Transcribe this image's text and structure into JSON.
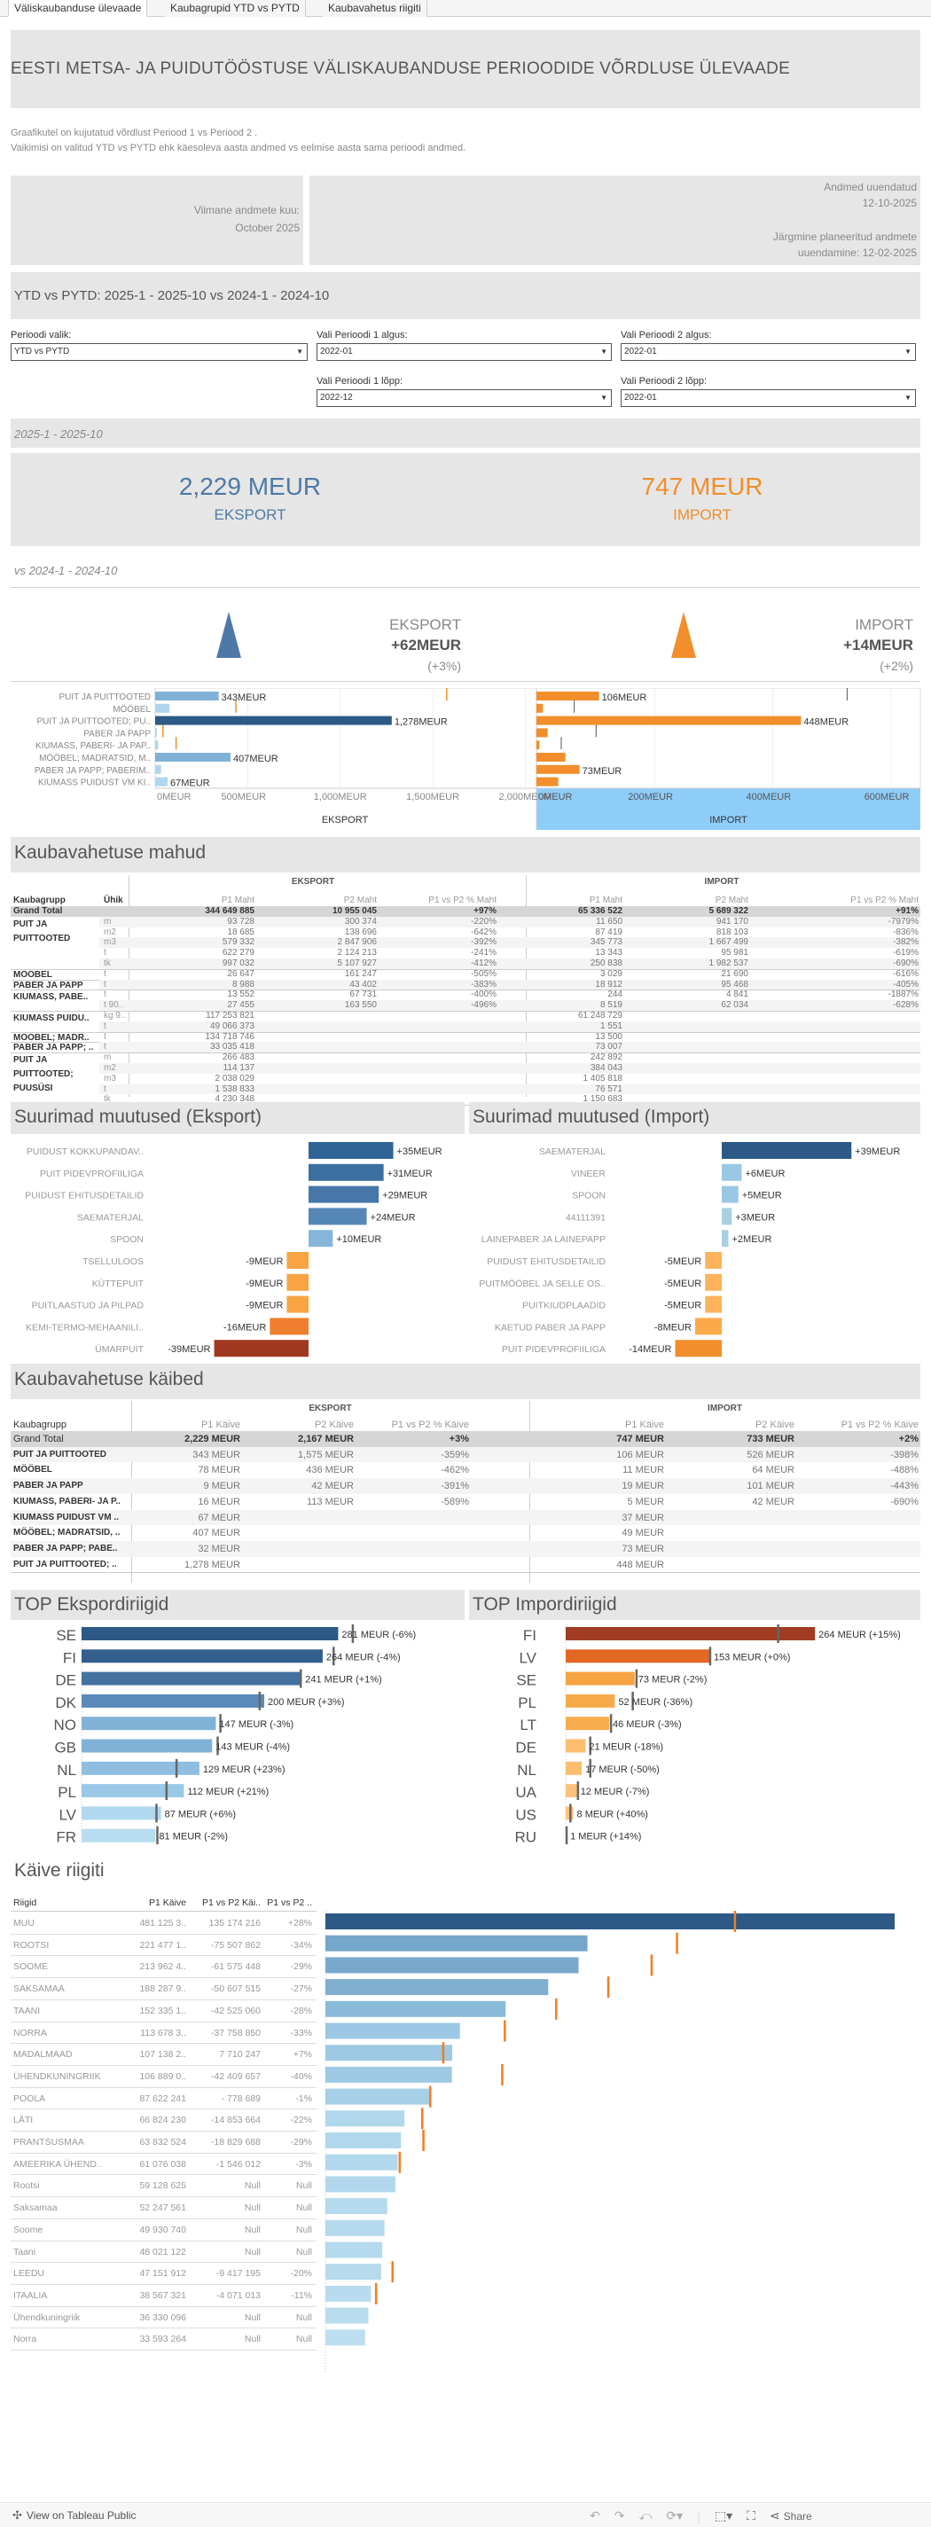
{
  "tabs": [
    {
      "label": "Väliskaubanduse ülevaade",
      "active": true
    },
    {
      "label": "Kaubagrupid YTD vs PYTD",
      "active": false
    },
    {
      "label": "Kaubavahetus riigiti",
      "active": false
    }
  ],
  "header": {
    "title": "EESTI METSA- JA PUIDUTÖÖSTUSE VÄLISKAUBANDUSE  PERIOODIDE VÕRDLUSE ÜLEVAADE",
    "description_line1": "Graafikutel on kujutatud võrdlust Periood 1 vs Periood 2 .",
    "description_line2": "Vaikimisi  on valitud YTD vs PYTD ehk käesoleva aasta andmed vs eelmise aasta sama perioodi andmed."
  },
  "info": {
    "last_month_label": "Viimane andmete kuu:",
    "last_month_value": "October 2025",
    "updated_label": "Andmed uuendatud",
    "updated_value": "12-10-2025",
    "next_update_label": "Järgmine planeeritud andmete",
    "next_update_value": "uuendamine:  12-02-2025"
  },
  "period_banner": "YTD vs PYTD:  2025-1 - 2025-10  vs  2024-1 - 2024-10",
  "filters": {
    "period_choice": {
      "label": "Perioodi valik:",
      "value": "YTD vs PYTD"
    },
    "p1_start": {
      "label": "Vali Perioodi 1 algus:",
      "value": "2022-01"
    },
    "p2_start": {
      "label": "Vali Perioodi 2 algus:",
      "value": "2022-01"
    },
    "p1_end": {
      "label": "Vali Perioodi 1 lõpp:",
      "value": "2022-12"
    },
    "p2_end": {
      "label": "Vali Perioodi 2 lõpp:",
      "value": "2022-01"
    }
  },
  "kpi": {
    "period1_label": "2025-1 - 2025-10",
    "export_value": "2,229 MEUR",
    "export_label": "EKSPORT",
    "import_value": "747 MEUR",
    "import_label": "IMPORT",
    "period2_label": "vs 2024-1 - 2024-10",
    "export_change_label": "EKSPORT",
    "export_change": "+62MEUR",
    "export_change_pct": "(+3%)",
    "import_change_label": "IMPORT",
    "import_change": "+14MEUR",
    "import_change_pct": "(+2%)"
  },
  "colors": {
    "export_blue": "#4e79a7",
    "export_dark": "#2c5985",
    "import_orange": "#f28e2b",
    "import_dark": "#9e3d22",
    "axis_highlight": "#8fcdf9"
  },
  "chart_data": [
    {
      "type": "bar",
      "title": "EKSPORT",
      "xlabel": "EKSPORT",
      "categories": [
        "PUIT JA PUITTOOTED",
        "MÖÖBEL",
        "PUIT JA PUITTOOTED; PU..",
        "PABER JA PAPP",
        "KIUMASS, PABERI- JA PAP..",
        "MÖÖBEL; MADRATSID, M..",
        "PABER JA PAPP; PABERIM..",
        "KIUMASS PUIDUST VM KI.."
      ],
      "values": [
        343,
        78,
        1278,
        9,
        16,
        407,
        32,
        67
      ],
      "reference_values": [
        1575,
        436,
        null,
        42,
        113,
        null,
        null,
        null
      ],
      "data_labels": [
        "343MEUR",
        "",
        "1,278MEUR",
        "",
        "",
        "407MEUR",
        "",
        "67MEUR"
      ],
      "xticks": [
        "0MEUR",
        "500MEUR",
        "1,000MEUR",
        "1,500MEUR",
        "2,000MEUR"
      ],
      "xlim": [
        0,
        2050
      ]
    },
    {
      "type": "bar",
      "title": "IMPORT",
      "xlabel": "IMPORT",
      "categories": [
        "PUIT JA PUITTOOTED",
        "MÖÖBEL",
        "PUIT JA PUITTOOTED; PU..",
        "PABER JA PAPP",
        "KIUMASS, PABERI- JA PAP..",
        "MÖÖBEL; MADRATSID, M..",
        "PABER JA PAPP; PABERIM..",
        "KIUMASS PUIDUST VM KI.."
      ],
      "values": [
        106,
        11,
        448,
        19,
        5,
        49,
        73,
        37
      ],
      "reference_values": [
        526,
        64,
        null,
        101,
        42,
        null,
        null,
        null
      ],
      "data_labels": [
        "106MEUR",
        "",
        "448MEUR",
        "",
        "",
        "",
        "73MEUR",
        ""
      ],
      "xticks": [
        "0MEUR",
        "200MEUR",
        "400MEUR",
        "600MEUR"
      ],
      "xlim": [
        0,
        650
      ]
    },
    {
      "type": "bar",
      "title": "Suurimad muutused (Eksport)",
      "categories": [
        "PUIDUST KOKKUPANDAV..",
        "PUIT PIDEVPROFIILIGA",
        "PUIDUST EHITUSDETAILID",
        "SAEMATERJAL",
        "SPOON",
        "TSELLULOOS",
        "KÜTTEPUIT",
        "PUITLAASTUD JA PILPAD",
        "KEMI-TERMO-MEHAANILI..",
        "ÜMARPUIT"
      ],
      "values": [
        35,
        31,
        29,
        24,
        10,
        -9,
        -9,
        -9,
        -16,
        -39
      ],
      "data_labels": [
        "+35MEUR",
        "+31MEUR",
        "+29MEUR",
        "+24MEUR",
        "+10MEUR",
        "-9MEUR",
        "-9MEUR",
        "-9MEUR",
        "-16MEUR",
        "-39MEUR"
      ],
      "colors": [
        "#2f6395",
        "#3a6fa0",
        "#4677a8",
        "#5587b6",
        "#85b6da",
        "#f9a444",
        "#f9a444",
        "#f9a444",
        "#ef7f2e",
        "#a0391f"
      ]
    },
    {
      "type": "bar",
      "title": "Suurimad muutused (Import)",
      "categories": [
        "SAEMATERJAL",
        "VINEER",
        "SPOON",
        "44111391",
        "LAINEPABER JA LAINEPAPP",
        "PUIDUST EHITUSDETAILID",
        "PUITMÖÖBEL JA SELLE OS..",
        "PUITKIUDPLAADID",
        "KAETUD PABER JA PAPP",
        "PUIT PIDEVPROFIILIGA"
      ],
      "values": [
        39,
        6,
        5,
        3,
        2,
        -5,
        -5,
        -5,
        -8,
        -14
      ],
      "data_labels": [
        "+39MEUR",
        "+6MEUR",
        "+5MEUR",
        "+3MEUR",
        "+2MEUR",
        "-5MEUR",
        "-5MEUR",
        "-5MEUR",
        "-8MEUR",
        "-14MEUR"
      ],
      "colors": [
        "#2c5985",
        "#9ac8e4",
        "#9ac8e4",
        "#aacfe0",
        "#aacfe0",
        "#fdb35c",
        "#fdb35c",
        "#fdb35c",
        "#fca94c",
        "#f28e2b"
      ]
    },
    {
      "type": "bar",
      "title": "TOP Ekspordiriigid",
      "categories": [
        "SE",
        "FI",
        "DE",
        "DK",
        "NO",
        "GB",
        "NL",
        "PL",
        "LV",
        "FR"
      ],
      "values": [
        281,
        264,
        241,
        200,
        147,
        143,
        129,
        112,
        87,
        81
      ],
      "reference_values": [
        297,
        276,
        240,
        195,
        152,
        149,
        104,
        93,
        82,
        83
      ],
      "data_labels": [
        "281 MEUR (-6%)",
        "264 MEUR (-4%)",
        "241 MEUR (+1%)",
        "200 MEUR (+3%)",
        "147 MEUR (-3%)",
        "143 MEUR (-4%)",
        "129 MEUR (+23%)",
        "112 MEUR (+21%)",
        "87 MEUR (+6%)",
        "81 MEUR (-2%)"
      ],
      "colors": [
        "#2c5985",
        "#335f8d",
        "#4472a0",
        "#5a8ab8",
        "#80b2d7",
        "#80b2d7",
        "#8fbee0",
        "#9ac8e6",
        "#b0d8ef",
        "#b8ddf1"
      ]
    },
    {
      "type": "bar",
      "title": "TOP Impordiriigid",
      "categories": [
        "FI",
        "LV",
        "SE",
        "PL",
        "LT",
        "DE",
        "NL",
        "UA",
        "US",
        "RU"
      ],
      "values": [
        264,
        153,
        73,
        52,
        46,
        21,
        17,
        12,
        8,
        1
      ],
      "reference_values": [
        225,
        153,
        75,
        71,
        48,
        26,
        26,
        13,
        5,
        1
      ],
      "data_labels": [
        "264 MEUR (+15%)",
        "153 MEUR (+0%)",
        "73 MEUR (-2%)",
        "52 MEUR (-36%)",
        "46 MEUR (-3%)",
        "21 MEUR (-18%)",
        "17 MEUR (-50%)",
        "12 MEUR (-7%)",
        "8 MEUR (+40%)",
        "1 MEUR (+14%)"
      ],
      "colors": [
        "#a03c22",
        "#e36824",
        "#f5a343",
        "#f7aa4a",
        "#f7ac4e",
        "#fbbd6e",
        "#fbbd6e",
        "#fdc27a",
        "#fdc27a",
        "#fdc27a"
      ]
    },
    {
      "type": "bar",
      "title": "Käive riigiti",
      "categories": [
        "MUU",
        "ROOTSI",
        "SOOME",
        "SAKSAMAA",
        "TAANI",
        "NORRA",
        "MADALMAAD",
        "ÜHENDKUNINGRIIK",
        "POOLA",
        "LÄTI",
        "PRANTSUSMAA",
        "AMEERIKA ÜHEND..",
        "Rootsi",
        "Saksamaa",
        "Soome",
        "Taani",
        "LEEDU",
        "ITAALIA",
        "Ühendkuningriik",
        "Norra"
      ],
      "values": [
        481125300,
        221477100,
        213962400,
        188287900,
        152335100,
        113678300,
        107138200,
        106889000,
        87622241,
        66824230,
        63832524,
        61076038,
        59128625,
        52247561,
        49930740,
        48021122,
        47151912,
        38567321,
        36330096,
        33593264
      ],
      "reference_values": [
        345951084,
        296984962,
        275537848,
        238895415,
        194860160,
        151437150,
        99427953,
        149298657,
        88400930,
        81677894,
        82662212,
        62622050,
        null,
        null,
        null,
        null,
        56569107,
        42638334,
        null,
        null
      ]
    }
  ],
  "mahud_table": {
    "title": "Kaubavahetuse mahud",
    "group_export": "EKSPORT",
    "group_import": "IMPORT",
    "headers": [
      "Kaubagrupp",
      "Ühik",
      "P1 Maht",
      "P2 Maht",
      "P1 vs P2 % Maht",
      "P1 Maht",
      "P2 Maht",
      "P1 vs P2 % Maht"
    ],
    "grand_total": {
      "label": "Grand Total",
      "values": [
        "344 649 885",
        "10 955 045",
        "+97%",
        "65 336 522",
        "5 689 322",
        "+91%"
      ]
    },
    "groups": [
      {
        "name": "PUIT JA PUITTOOTED",
        "rows": [
          {
            "unit": "m",
            "values": [
              "93 728",
              "300 374",
              "-220%",
              "11 650",
              "941 170",
              "-7979%"
            ]
          },
          {
            "unit": "m2",
            "values": [
              "18 685",
              "138 696",
              "-642%",
              "87 419",
              "818 103",
              "-836%"
            ]
          },
          {
            "unit": "m3",
            "values": [
              "579 332",
              "2 847 906",
              "-392%",
              "345 773",
              "1 667 499",
              "-382%"
            ]
          },
          {
            "unit": "t",
            "values": [
              "622 279",
              "2 124 213",
              "-241%",
              "13 343",
              "95 981",
              "-619%"
            ]
          },
          {
            "unit": "tk",
            "values": [
              "997 032",
              "5 107 927",
              "-412%",
              "250 838",
              "1 982 537",
              "-690%"
            ]
          }
        ]
      },
      {
        "name": "MÖÖBEL",
        "rows": [
          {
            "unit": "t",
            "values": [
              "26 647",
              "161 247",
              "-505%",
              "3 029",
              "21 690",
              "-616%"
            ]
          }
        ]
      },
      {
        "name": "PABER JA PAPP",
        "rows": [
          {
            "unit": "t",
            "values": [
              "8 988",
              "43 402",
              "-383%",
              "18 912",
              "95 468",
              "-405%"
            ]
          }
        ]
      },
      {
        "name": "KIUMASS, PABE..",
        "rows": [
          {
            "unit": "t",
            "values": [
              "13 552",
              "67 731",
              "-400%",
              "244",
              "4 841",
              "-1887%"
            ]
          },
          {
            "unit": "t 90..",
            "values": [
              "27 455",
              "163 550",
              "-496%",
              "8 519",
              "62 034",
              "-628%"
            ]
          }
        ]
      },
      {
        "name": "KIUMASS PUIDU..",
        "rows": [
          {
            "unit": "kg 9..",
            "values": [
              "117 253 821",
              "",
              "",
              "61 248 729",
              "",
              ""
            ]
          },
          {
            "unit": "t",
            "values": [
              "49 066 373",
              "",
              "",
              "1 551",
              "",
              ""
            ]
          }
        ]
      },
      {
        "name": "MÖÖBEL; MADR..",
        "rows": [
          {
            "unit": "t",
            "values": [
              "134 718 746",
              "",
              "",
              "13 500",
              "",
              ""
            ]
          }
        ]
      },
      {
        "name": "PABER JA PAPP; ..",
        "rows": [
          {
            "unit": "t",
            "values": [
              "33 035 418",
              "",
              "",
              "73 007",
              "",
              ""
            ]
          }
        ]
      },
      {
        "name": "PUIT JA PUITTOOTED; PUUSÜSI",
        "rows": [
          {
            "unit": "m",
            "values": [
              "266 483",
              "",
              "",
              "242 892",
              "",
              ""
            ]
          },
          {
            "unit": "m2",
            "values": [
              "114 137",
              "",
              "",
              "384 043",
              "",
              ""
            ]
          },
          {
            "unit": "m3",
            "values": [
              "2 038 029",
              "",
              "",
              "1 405 818",
              "",
              ""
            ]
          },
          {
            "unit": "t",
            "values": [
              "1 538 833",
              "",
              "",
              "76 571",
              "",
              ""
            ]
          },
          {
            "unit": "tk",
            "values": [
              "4 230 348",
              "",
              "",
              "1 150 683",
              "",
              ""
            ]
          }
        ]
      }
    ]
  },
  "kaibed_table": {
    "title": "Kaubavahetuse käibed",
    "group_export": "EKSPORT",
    "group_import": "IMPORT",
    "headers": [
      "Kaubagrupp",
      "P1 Käive",
      "P2 Käive",
      "P1 vs P2 % Käive",
      "P1 Käive",
      "P2 Käive",
      "P1 vs P2 % Käive"
    ],
    "grand_total": {
      "label": "Grand Total",
      "values": [
        "2,229 MEUR",
        "2,167 MEUR",
        "+3%",
        "747 MEUR",
        "733 MEUR",
        "+2%"
      ]
    },
    "rows": [
      {
        "name": "PUIT JA PUITTOOTED",
        "values": [
          "343 MEUR",
          "1,575 MEUR",
          "-359%",
          "106 MEUR",
          "526 MEUR",
          "-398%"
        ]
      },
      {
        "name": "MÖÖBEL",
        "values": [
          "78 MEUR",
          "436 MEUR",
          "-462%",
          "11 MEUR",
          "64 MEUR",
          "-488%"
        ]
      },
      {
        "name": "PABER JA PAPP",
        "values": [
          "9 MEUR",
          "42 MEUR",
          "-391%",
          "19 MEUR",
          "101 MEUR",
          "-443%"
        ]
      },
      {
        "name": "KIUMASS, PABERI- JA P..",
        "values": [
          "16 MEUR",
          "113 MEUR",
          "-589%",
          "5 MEUR",
          "42 MEUR",
          "-690%"
        ]
      },
      {
        "name": "KIUMASS PUIDUST VM ..",
        "values": [
          "67 MEUR",
          "",
          "",
          "37 MEUR",
          "",
          ""
        ]
      },
      {
        "name": "MÖÖBEL; MADRATSID, ..",
        "values": [
          "407 MEUR",
          "",
          "",
          "49 MEUR",
          "",
          ""
        ]
      },
      {
        "name": "PABER JA PAPP; PABE..",
        "values": [
          "32 MEUR",
          "",
          "",
          "73 MEUR",
          "",
          ""
        ]
      },
      {
        "name": "PUIT JA PUITTOOTED; ..",
        "values": [
          "1,278 MEUR",
          "",
          "",
          "448 MEUR",
          "",
          ""
        ]
      }
    ]
  },
  "riigiti_table": {
    "title": "Käive riigiti",
    "headers": [
      "Riigid",
      "P1 Käive",
      "P1 vs P2 Käi..",
      "P1 vs P2 .."
    ],
    "rows": [
      [
        "MUU",
        "481 125 3..",
        "135 174 216",
        "+28%"
      ],
      [
        "ROOTSI",
        "221 477 1..",
        "-75 507 862",
        "-34%"
      ],
      [
        "SOOME",
        "213 962 4..",
        "-61 575 448",
        "-29%"
      ],
      [
        "SAKSAMAA",
        "188 287 9..",
        "-50 607 515",
        "-27%"
      ],
      [
        "TAANI",
        "152 335 1..",
        "-42 525 060",
        "-28%"
      ],
      [
        "NORRA",
        "113 678 3..",
        "-37 758 850",
        "-33%"
      ],
      [
        "MADALMAAD",
        "107 138 2..",
        "7 710 247",
        "+7%"
      ],
      [
        "ÜHENDKUNINGRIIK",
        "106 889 0..",
        "-42 409 657",
        "-40%"
      ],
      [
        "POOLA",
        "87 622 241",
        "- 778 689",
        "-1%"
      ],
      [
        "LÄTI",
        "66 824 230",
        "-14 853 664",
        "-22%"
      ],
      [
        "PRANTSUSMAA",
        "63 832 524",
        "-18 829 688",
        "-29%"
      ],
      [
        "AMEERIKA ÜHEND..",
        "61 076 038",
        "-1 546 012",
        "-3%"
      ],
      [
        "Rootsi",
        "59 128 625",
        "Null",
        "Null"
      ],
      [
        "Saksamaa",
        "52 247 561",
        "Null",
        "Null"
      ],
      [
        "Soome",
        "49 930 740",
        "Null",
        "Null"
      ],
      [
        "Taani",
        "48 021 122",
        "Null",
        "Null"
      ],
      [
        "LEEDU",
        "47 151 912",
        "-9 417 195",
        "-20%"
      ],
      [
        "ITAALIA",
        "38 567 321",
        "-4 071 013",
        "-11%"
      ],
      [
        "Ühendkuningriik",
        "36 330 096",
        "Null",
        "Null"
      ],
      [
        "Norra",
        "33 593 264",
        "Null",
        "Null"
      ]
    ]
  },
  "footer": {
    "view_on_label": "View on Tableau Public",
    "share_label": "Share"
  }
}
